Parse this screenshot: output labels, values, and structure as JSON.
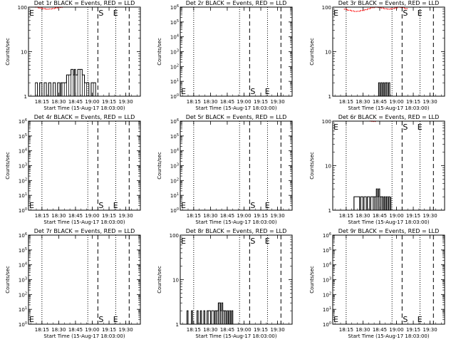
{
  "colors": {
    "events": "#000000",
    "lld": "#ff0000",
    "axis": "#000000",
    "background": "#ffffff"
  },
  "ylabel": "Counts/sec",
  "xlabel": "Start Time (15-Aug-17 18:03:00)",
  "x_ticks": [
    "18:15",
    "18:30",
    "18:45",
    "19:00",
    "19:15",
    "19:30"
  ],
  "panel_titles": [
    "Det 1r BLACK = Events, RED = LLD",
    "Det 2r BLACK = Events, RED = LLD",
    "Det 3r BLACK = Events, RED = LLD",
    "Det 4r BLACK = Events, RED = LLD",
    "Det 5r BLACK = Events, RED = LLD",
    "Det 6r BLACK = Events, RED = LLD",
    "Det 7r BLACK = Events, RED = LLD",
    "Det 8r BLACK = Events, RED = LLD",
    "Det 9r BLACK = Events, RED = LLD"
  ],
  "chart_data": [
    {
      "type": "line",
      "title": "Det 1r BLACK = Events, RED = LLD",
      "xlabel": "Start Time (15-Aug-17 18:03:00)",
      "ylabel": "Counts/sec",
      "xlim_min": [
        0,
        100
      ],
      "yscale": "log",
      "ylim": [
        1,
        100
      ],
      "yticks": [
        "1",
        "10",
        "100"
      ],
      "markers_min": {
        "dotted": [
          12,
          53,
          78
        ],
        "dashed": [
          62,
          90
        ],
        "S": 62,
        "E": 75,
        "E_left": 0
      },
      "series": [
        {
          "color": "black",
          "x": [
            6,
            8,
            10,
            12,
            14,
            16,
            18,
            20,
            22,
            24,
            26,
            28,
            29,
            30,
            32,
            34,
            36,
            38,
            40,
            41,
            42,
            44,
            46,
            48,
            50,
            52,
            54,
            56,
            58,
            60
          ],
          "y": [
            2,
            1,
            2,
            1,
            2,
            1,
            2,
            1,
            2,
            1,
            2,
            1,
            2,
            2,
            2,
            3,
            3,
            4,
            3,
            4,
            3,
            4,
            4,
            3,
            2,
            2,
            1,
            2,
            2,
            1
          ]
        },
        {
          "color": "red",
          "x": [
            6,
            9,
            12,
            15,
            18,
            21,
            24,
            27,
            30
          ],
          "y": [
            100,
            95,
            92,
            90,
            91,
            93,
            96,
            98,
            100
          ]
        }
      ]
    },
    {
      "type": "line",
      "title": "Det 2r BLACK = Events, RED = LLD",
      "xlabel": "Start Time (15-Aug-17 18:03:00)",
      "ylabel": "Counts/sec",
      "xlim_min": [
        0,
        100
      ],
      "yscale": "log",
      "ylim": [
        1,
        1000000
      ],
      "yticks": [
        "10^0",
        "10^1",
        "10^2",
        "10^3",
        "10^4",
        "10^5",
        "10^6"
      ],
      "markers_min": {
        "dotted": [
          12,
          53,
          78
        ],
        "dashed": [
          62,
          90
        ],
        "S": 62,
        "E": 75,
        "E_left": 0
      },
      "series": []
    },
    {
      "type": "line",
      "title": "Det 3r BLACK = Events, RED = LLD",
      "xlabel": "Start Time (15-Aug-17 18:03:00)",
      "ylabel": "Counts/sec",
      "xlim_min": [
        0,
        100
      ],
      "yscale": "log",
      "ylim": [
        1,
        100
      ],
      "yticks": [
        "1",
        "10",
        "100"
      ],
      "markers_min": {
        "dotted": [
          12,
          53,
          78
        ],
        "dashed": [
          62,
          90
        ],
        "S": 62,
        "E": 75,
        "E_left": 0
      },
      "series": [
        {
          "color": "black",
          "x": [
            40,
            41,
            42,
            43,
            44,
            45,
            46,
            47,
            48,
            49,
            50,
            51
          ],
          "y": [
            1,
            2,
            1,
            2,
            1,
            2,
            1,
            2,
            2,
            1,
            2,
            1
          ]
        },
        {
          "color": "red",
          "x": [
            10,
            13,
            16,
            19,
            22,
            25,
            28,
            31,
            34,
            37,
            40,
            43,
            46,
            49,
            52,
            55,
            58,
            61,
            64,
            67
          ],
          "y": [
            90,
            85,
            82,
            80,
            81,
            84,
            88,
            92,
            97,
            100,
            98,
            95,
            92,
            90,
            93,
            96,
            100,
            98,
            92,
            90
          ]
        }
      ]
    },
    {
      "type": "line",
      "title": "Det 4r BLACK = Events, RED = LLD",
      "xlabel": "Start Time (15-Aug-17 18:03:00)",
      "ylabel": "Counts/sec",
      "xlim_min": [
        0,
        100
      ],
      "yscale": "log",
      "ylim": [
        1,
        1000000
      ],
      "yticks": [
        "10^0",
        "10^1",
        "10^2",
        "10^3",
        "10^4",
        "10^5",
        "10^6"
      ],
      "markers_min": {
        "dotted": [
          12,
          53,
          78
        ],
        "dashed": [
          62,
          90
        ],
        "S": 62,
        "E": 75,
        "E_left": 0
      },
      "series": []
    },
    {
      "type": "line",
      "title": "Det 5r BLACK = Events, RED = LLD",
      "xlabel": "Start Time (15-Aug-17 18:03:00)",
      "ylabel": "Counts/sec",
      "xlim_min": [
        0,
        100
      ],
      "yscale": "log",
      "ylim": [
        1,
        1000000
      ],
      "yticks": [
        "10^0",
        "10^1",
        "10^2",
        "10^3",
        "10^4",
        "10^5",
        "10^6"
      ],
      "markers_min": {
        "dotted": [
          12,
          53,
          78
        ],
        "dashed": [
          62,
          90
        ],
        "S": 62,
        "E": 75,
        "E_left": 0
      },
      "series": []
    },
    {
      "type": "line",
      "title": "Det 6r BLACK = Events, RED = LLD",
      "xlabel": "Start Time (15-Aug-17 18:03:00)",
      "ylabel": "Counts/sec",
      "xlim_min": [
        0,
        100
      ],
      "yscale": "log",
      "ylim": [
        1,
        100
      ],
      "yticks": [
        "1",
        "10",
        "100"
      ],
      "markers_min": {
        "dotted": [
          12,
          53,
          78
        ],
        "dashed": [
          62,
          90
        ],
        "S": 62,
        "E": 75,
        "E_left": 0
      },
      "series": [
        {
          "color": "black",
          "x": [
            18,
            19,
            24,
            25,
            27,
            28,
            30,
            31,
            33,
            34,
            36,
            37,
            38,
            39,
            40,
            41,
            42,
            43,
            44,
            45,
            46,
            47,
            48,
            49,
            50,
            51,
            52
          ],
          "y": [
            1,
            2,
            1,
            2,
            1,
            2,
            1,
            2,
            1,
            2,
            2,
            2,
            2,
            3,
            2,
            3,
            2,
            2,
            2,
            1,
            2,
            1,
            2,
            1,
            2,
            1,
            2
          ]
        },
        {
          "color": "red",
          "x": [
            33,
            35,
            37,
            39
          ],
          "y": [
            100,
            98,
            98,
            100
          ]
        }
      ]
    },
    {
      "type": "line",
      "title": "Det 7r BLACK = Events, RED = LLD",
      "xlabel": "Start Time (15-Aug-17 18:03:00)",
      "ylabel": "Counts/sec",
      "xlim_min": [
        0,
        100
      ],
      "yscale": "log",
      "ylim": [
        1,
        1000000
      ],
      "yticks": [
        "10^0",
        "10^1",
        "10^2",
        "10^3",
        "10^4",
        "10^5",
        "10^6"
      ],
      "markers_min": {
        "dotted": [
          12,
          53,
          78
        ],
        "dashed": [
          62,
          90
        ],
        "S": 62,
        "E": 75,
        "E_left": 0
      },
      "series": []
    },
    {
      "type": "line",
      "title": "Det 8r BLACK = Events, RED = LLD",
      "xlabel": "Start Time (15-Aug-17 18:03:00)",
      "ylabel": "Counts/sec",
      "xlim_min": [
        0,
        100
      ],
      "yscale": "log",
      "ylim": [
        1,
        100
      ],
      "yticks": [
        "1",
        "10",
        "100"
      ],
      "markers_min": {
        "dotted": [
          12,
          53,
          78
        ],
        "dashed": [
          62,
          90
        ],
        "S": 62,
        "E": 75,
        "E_left": 0
      },
      "series": [
        {
          "color": "black",
          "x": [
            5,
            6,
            7,
            10,
            11,
            15,
            16,
            18,
            19,
            21,
            22,
            24,
            25,
            27,
            28,
            30,
            31,
            32,
            33,
            34,
            35,
            36,
            37,
            38,
            39,
            40,
            41,
            42,
            43,
            44,
            45,
            46,
            47
          ],
          "y": [
            1,
            2,
            1,
            2,
            1,
            2,
            1,
            2,
            1,
            2,
            1,
            2,
            2,
            1,
            2,
            1,
            2,
            2,
            2,
            3,
            3,
            2,
            3,
            2,
            2,
            2,
            1,
            2,
            1,
            2,
            1,
            2,
            1
          ]
        }
      ]
    },
    {
      "type": "line",
      "title": "Det 9r BLACK = Events, RED = LLD",
      "xlabel": "Start Time (15-Aug-17 18:03:00)",
      "ylabel": "Counts/sec",
      "xlim_min": [
        0,
        100
      ],
      "yscale": "log",
      "ylim": [
        1,
        1000000
      ],
      "yticks": [
        "10^0",
        "10^1",
        "10^2",
        "10^3",
        "10^4",
        "10^5",
        "10^6"
      ],
      "markers_min": {
        "dotted": [
          12,
          53,
          78
        ],
        "dashed": [
          62,
          90
        ],
        "S": 62,
        "E": 75,
        "E_left": 0
      },
      "series": []
    }
  ]
}
